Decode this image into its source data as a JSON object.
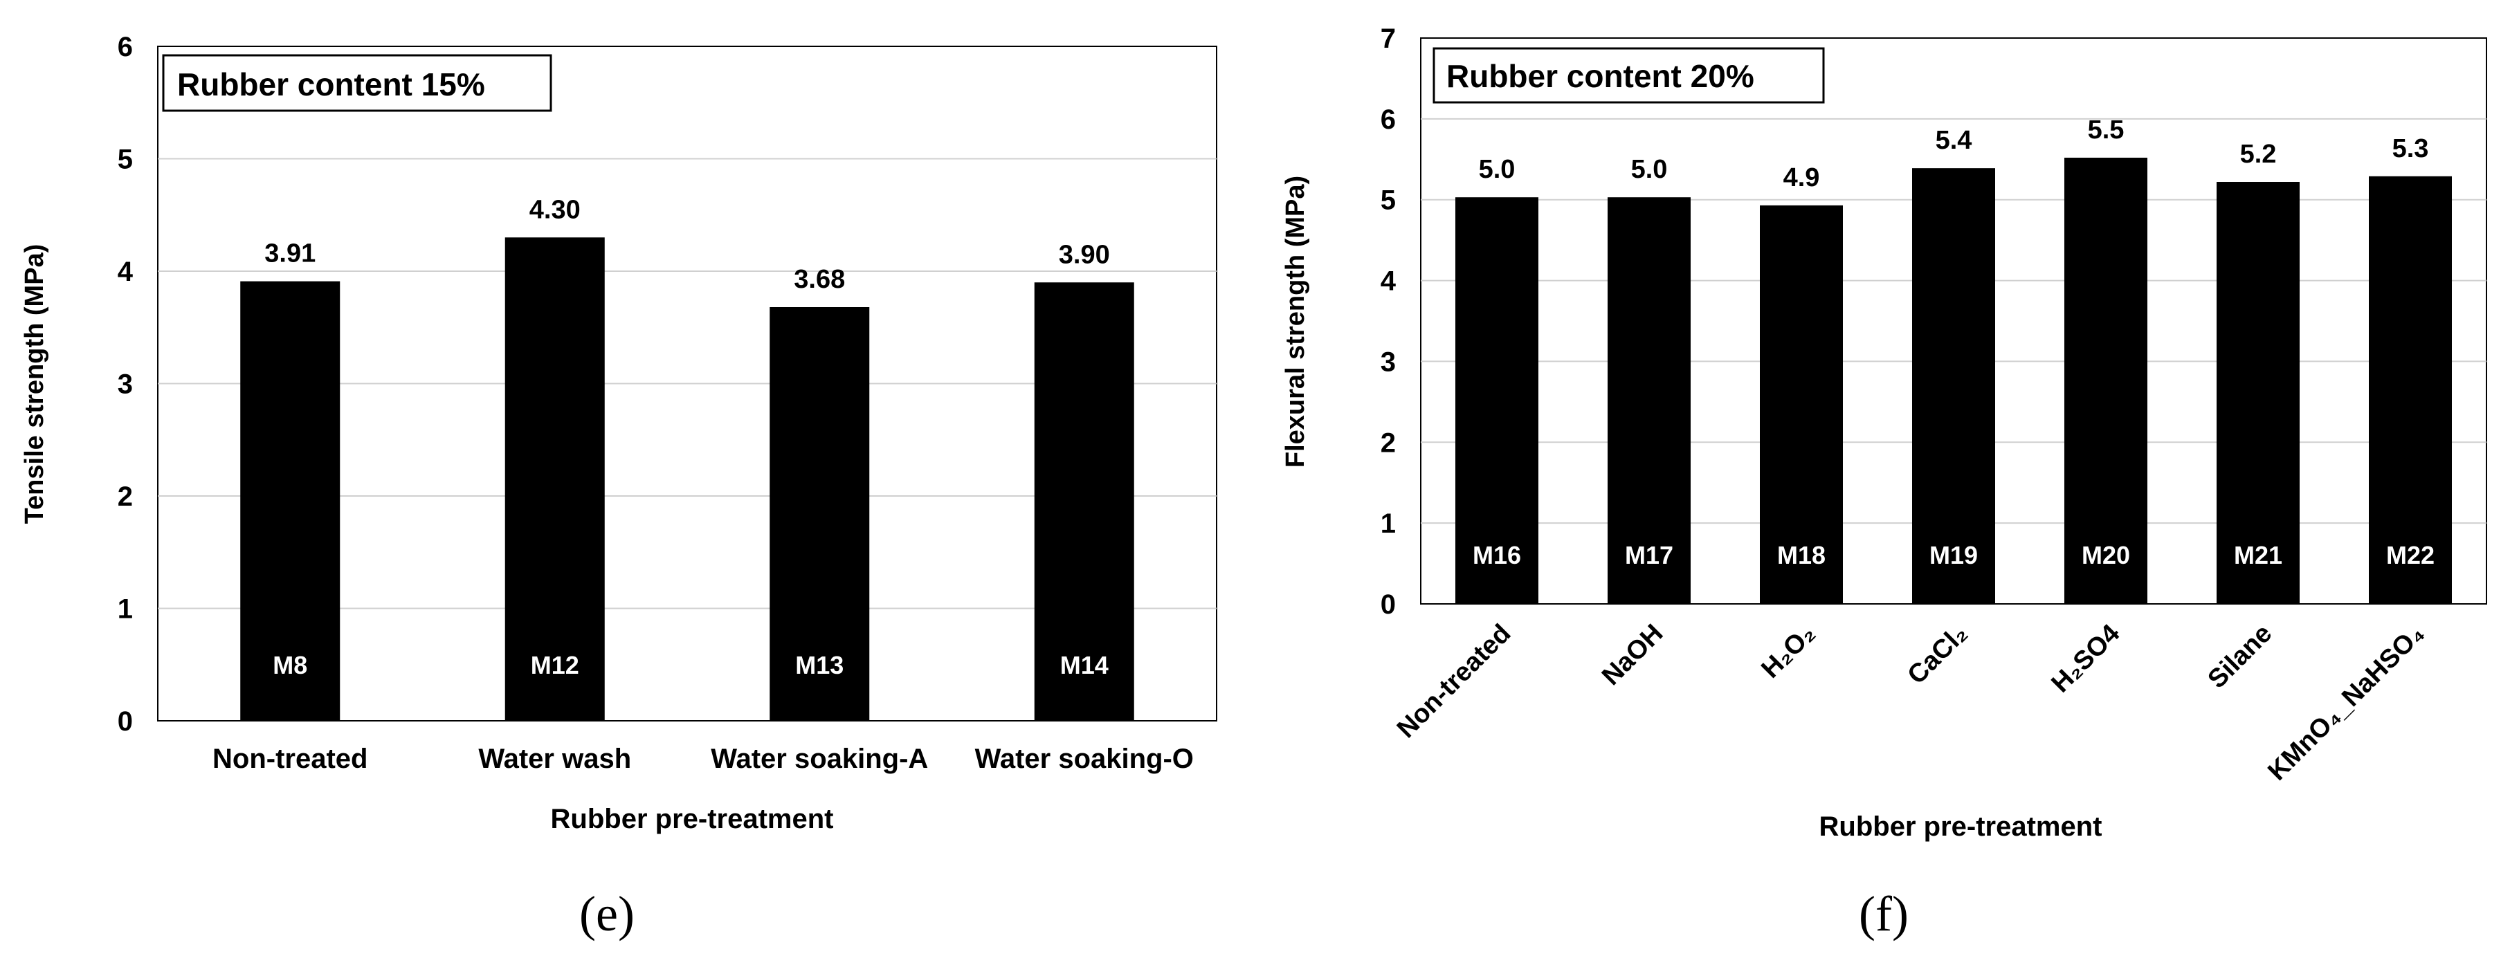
{
  "chart_data": [
    {
      "panel_label": "(e)",
      "type": "bar",
      "title": "Rubber content 15%",
      "xlabel": "Rubber pre-treatment",
      "ylabel": "Tensile strength (MPa)",
      "ylim": [
        0,
        6
      ],
      "yticks": [
        "0",
        "1",
        "2",
        "3",
        "4",
        "5",
        "6"
      ],
      "grid": true,
      "categories": [
        "Non-treated",
        "Water wash",
        "Water soaking-A",
        "Water soaking-O"
      ],
      "values": [
        3.91,
        4.3,
        3.68,
        3.9
      ],
      "value_labels": [
        "3.91",
        "4.30",
        "3.68",
        "3.90"
      ],
      "bar_labels": [
        "M8",
        "M12",
        "M13",
        "M14"
      ],
      "bar_color": "#000000"
    },
    {
      "panel_label": "(f)",
      "type": "bar",
      "title": "Rubber content 20%",
      "xlabel": "Rubber pre-treatment",
      "ylabel": "Flexural strength (MPa)",
      "ylim": [
        0,
        7
      ],
      "yticks": [
        "0",
        "1",
        "2",
        "3",
        "4",
        "5",
        "6",
        "7"
      ],
      "grid": true,
      "categories": [
        "Non-treated",
        "NaOH",
        "H₂O₂",
        "CaCl₂",
        "H₂SO4",
        "Silane",
        "KMnO₄_NaHSO₄"
      ],
      "values": [
        5.03,
        5.03,
        4.93,
        5.39,
        5.52,
        5.22,
        5.29
      ],
      "value_labels": [
        "5.0",
        "5.0",
        "4.9",
        "5.4",
        "5.5",
        "5.2",
        "5.3"
      ],
      "bar_labels": [
        "M16",
        "M17",
        "M18",
        "M19",
        "M20",
        "M21",
        "M22"
      ],
      "bar_color": "#000000"
    }
  ]
}
